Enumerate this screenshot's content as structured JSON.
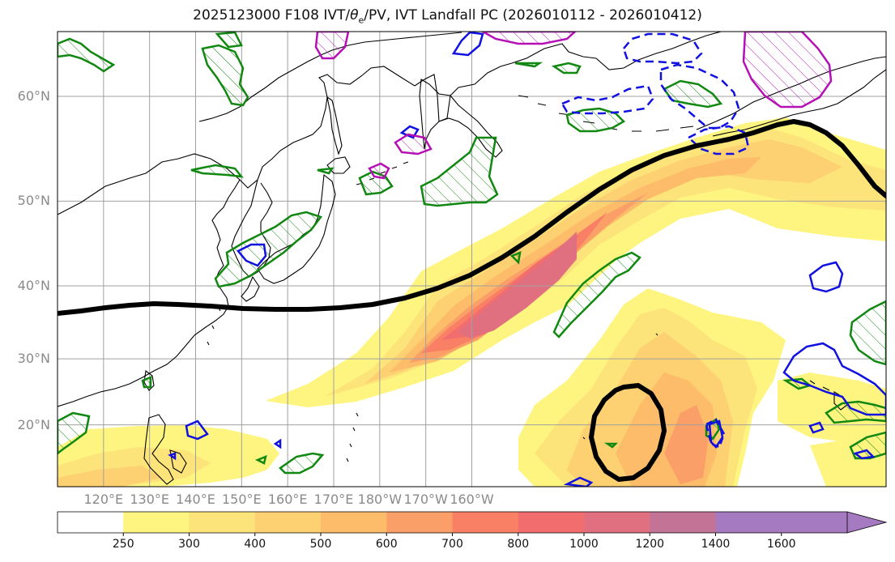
{
  "title": "2025123000 F108 IVT/θe/PV, IVT Landfall PC (2026010112 - 2026010412)",
  "title_parts": {
    "prefix": "2025123000 F108 IVT/",
    "theta": "θ",
    "theta_sub": "e",
    "suffix": "/PV, IVT Landfall PC (2026010112 - 2026010412)"
  },
  "map": {
    "lon_range": [
      110,
      290
    ],
    "lat_range": [
      10,
      65
    ],
    "lat_ticks": [
      {
        "value": 20,
        "label": "20°N"
      },
      {
        "value": 30,
        "label": "30°N"
      },
      {
        "value": 40,
        "label": "40°N"
      },
      {
        "value": 50,
        "label": "50°N"
      },
      {
        "value": 60,
        "label": "60°N"
      }
    ],
    "lon_ticks": [
      {
        "value": 120,
        "label": "120°E"
      },
      {
        "value": 130,
        "label": "130°E"
      },
      {
        "value": 140,
        "label": "140°E"
      },
      {
        "value": 150,
        "label": "150°E"
      },
      {
        "value": 160,
        "label": "160°E"
      },
      {
        "value": 170,
        "label": "170°E"
      },
      {
        "value": 180,
        "label": "180°W"
      },
      {
        "value": 190,
        "label": "170°W"
      },
      {
        "value": 200,
        "label": "160°W"
      }
    ]
  },
  "colorbar": {
    "levels": [
      "250",
      "300",
      "400",
      "500",
      "600",
      "700",
      "800",
      "1000",
      "1200",
      "1400",
      "1600"
    ],
    "colors": [
      "#ffffff",
      "#fdf580",
      "#fde47a",
      "#fdd071",
      "#fcbc6a",
      "#fb9f68",
      "#f98065",
      "#f26e6e",
      "#e07080",
      "#c37496",
      "#a67ac0",
      "#a67ac0"
    ],
    "extend": "max",
    "units": ""
  },
  "colors": {
    "pc_line": "#000000",
    "green_contour": "#118811",
    "blue_contour": "#1010e0",
    "magenta_contour": "#b510b5",
    "coast": "#000000",
    "grid": "#a0a0a0"
  }
}
